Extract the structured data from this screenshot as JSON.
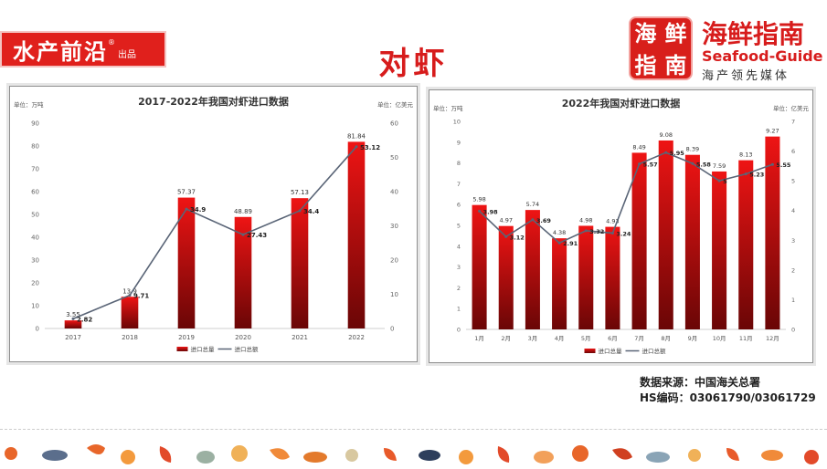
{
  "header": {
    "brand": "水产前沿",
    "brand_mark": "®",
    "brand_sub": "出品",
    "title": "对虾",
    "logo_chars": [
      "海",
      "鲜",
      "指",
      "南"
    ],
    "logo_name": "海鲜指南",
    "logo_en": "Seafood-Guide",
    "logo_tagline": "海产领先媒体"
  },
  "colors": {
    "accent": "#d71c1c",
    "bar_top": "#ee1414",
    "bar_bottom": "#6a0606",
    "line": "#5a6577"
  },
  "source": {
    "line1": "数据来源：中国海关总署",
    "line2": "HS编码：03061790/03061729"
  },
  "chart_data": [
    {
      "type": "bar",
      "title": "2017-2022年我国对虾进口数据",
      "unit_left": "单位：万吨",
      "unit_right": "单位：亿美元",
      "categories": [
        "2017",
        "2018",
        "2019",
        "2020",
        "2021",
        "2022"
      ],
      "series": [
        {
          "name": "进口总量",
          "type": "bar",
          "axis": "left",
          "values": [
            3.55,
            13.9,
            57.37,
            48.89,
            57.13,
            81.84
          ]
        },
        {
          "name": "进口总额",
          "type": "line",
          "axis": "right",
          "values": [
            2.82,
            9.71,
            34.9,
            27.43,
            34.4,
            53.12
          ]
        }
      ],
      "ylim_left": [
        0,
        90
      ],
      "yticks_left": [
        0,
        10,
        20,
        30,
        40,
        50,
        60,
        70,
        80,
        90
      ],
      "ylim_right": [
        0,
        60
      ],
      "yticks_right": [
        0,
        10,
        20,
        30,
        40,
        50,
        60
      ],
      "legend_position": "bottom",
      "grid": false
    },
    {
      "type": "bar",
      "title": "2022年我国对虾进口数据",
      "unit_left": "单位：万吨",
      "unit_right": "单位：亿美元",
      "categories": [
        "1月",
        "2月",
        "3月",
        "4月",
        "5月",
        "6月",
        "7月",
        "8月",
        "9月",
        "10月",
        "11月",
        "12月"
      ],
      "series": [
        {
          "name": "进口总量",
          "type": "bar",
          "axis": "left",
          "values": [
            5.98,
            4.97,
            5.74,
            4.38,
            4.98,
            4.93,
            8.49,
            9.08,
            8.39,
            7.59,
            8.13,
            9.27
          ]
        },
        {
          "name": "进口总额",
          "type": "line",
          "axis": "right",
          "values": [
            3.98,
            3.12,
            3.69,
            2.91,
            3.32,
            3.24,
            5.57,
            5.95,
            5.58,
            5,
            5.23,
            5.55
          ]
        }
      ],
      "ylim_left": [
        0,
        10
      ],
      "yticks_left": [
        0,
        1,
        2,
        3,
        4,
        5,
        6,
        7,
        8,
        9,
        10
      ],
      "ylim_right": [
        0,
        7
      ],
      "yticks_right": [
        0,
        1,
        2,
        3,
        4,
        5,
        6,
        7
      ],
      "legend_position": "bottom",
      "grid": false
    }
  ]
}
